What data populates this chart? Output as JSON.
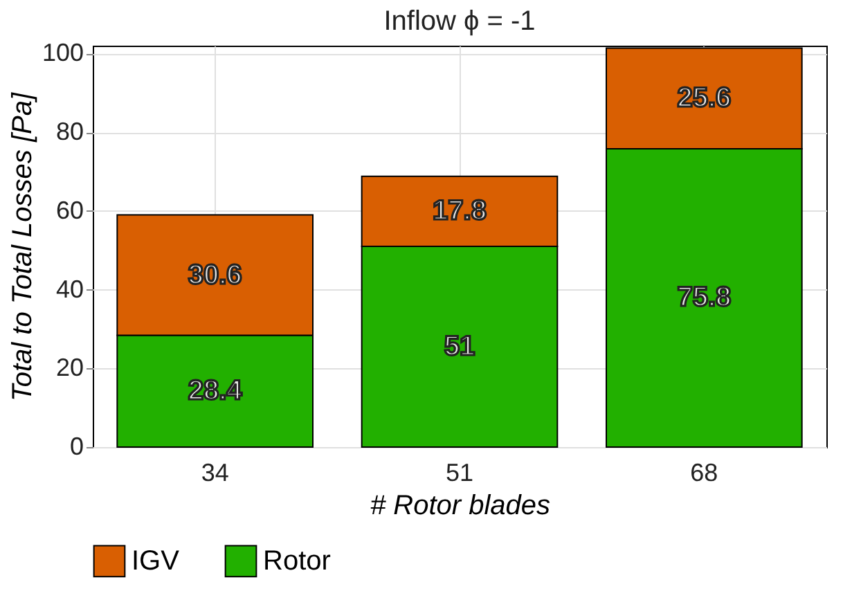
{
  "chart_data": {
    "type": "bar",
    "title": "Inflow ϕ = -1",
    "xlabel": "# Rotor blades",
    "ylabel": "Total to Total Losses [Pa]",
    "categories": [
      "34",
      "51",
      "68"
    ],
    "series": [
      {
        "name": "Rotor",
        "color": "#22b000",
        "values": [
          28.4,
          51,
          75.8
        ]
      },
      {
        "name": "IGV",
        "color": "#d95f02",
        "values": [
          30.6,
          17.8,
          25.6
        ]
      }
    ],
    "stacked": true,
    "data_labels": true,
    "ylim": [
      0,
      102
    ],
    "yticks": [
      0,
      20,
      40,
      60,
      80,
      100
    ],
    "grid": true,
    "legend": "bottom"
  }
}
